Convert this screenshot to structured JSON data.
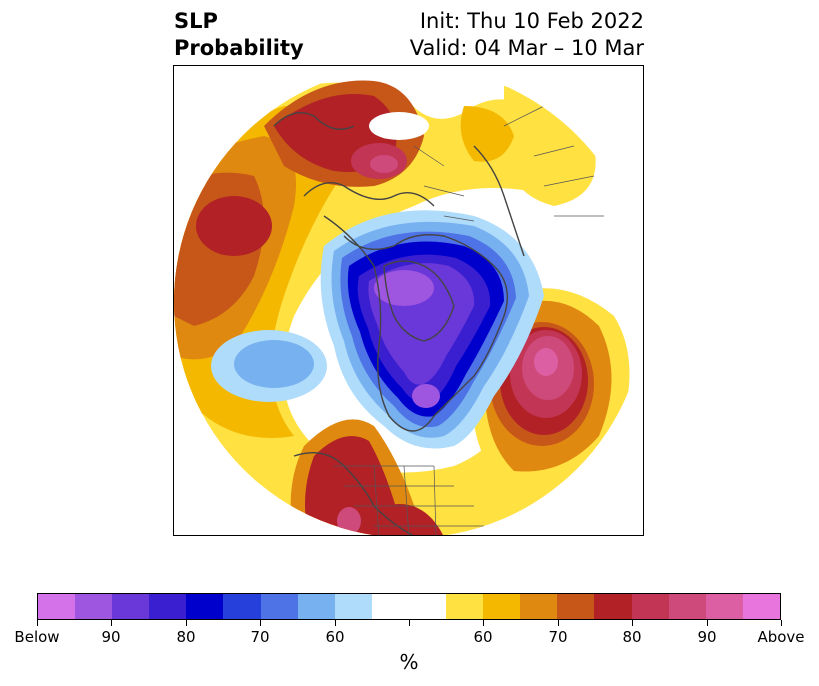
{
  "header": {
    "title_line1": "SLP",
    "title_line2": "Probability",
    "init": "Init: Thu 10 Feb 2022",
    "valid": "Valid: 04 Mar – 10 Mar"
  },
  "colorbar": {
    "unit": "%",
    "colors": [
      "#d473e9",
      "#9e55e0",
      "#6a37d8",
      "#3a1fd1",
      "#0000cd",
      "#2640dc",
      "#4d73e6",
      "#78b1f0",
      "#afdcfb",
      "#ffffff",
      "#ffffff",
      "#ffe142",
      "#f4b800",
      "#e08910",
      "#c65718",
      "#b12126",
      "#c23555",
      "#cd4a7b",
      "#dc5fa3",
      "#e874de"
    ],
    "tick_labels": [
      "Below",
      "90",
      "80",
      "70",
      "60",
      "",
      "60",
      "70",
      "80",
      "90",
      "Above"
    ]
  }
}
